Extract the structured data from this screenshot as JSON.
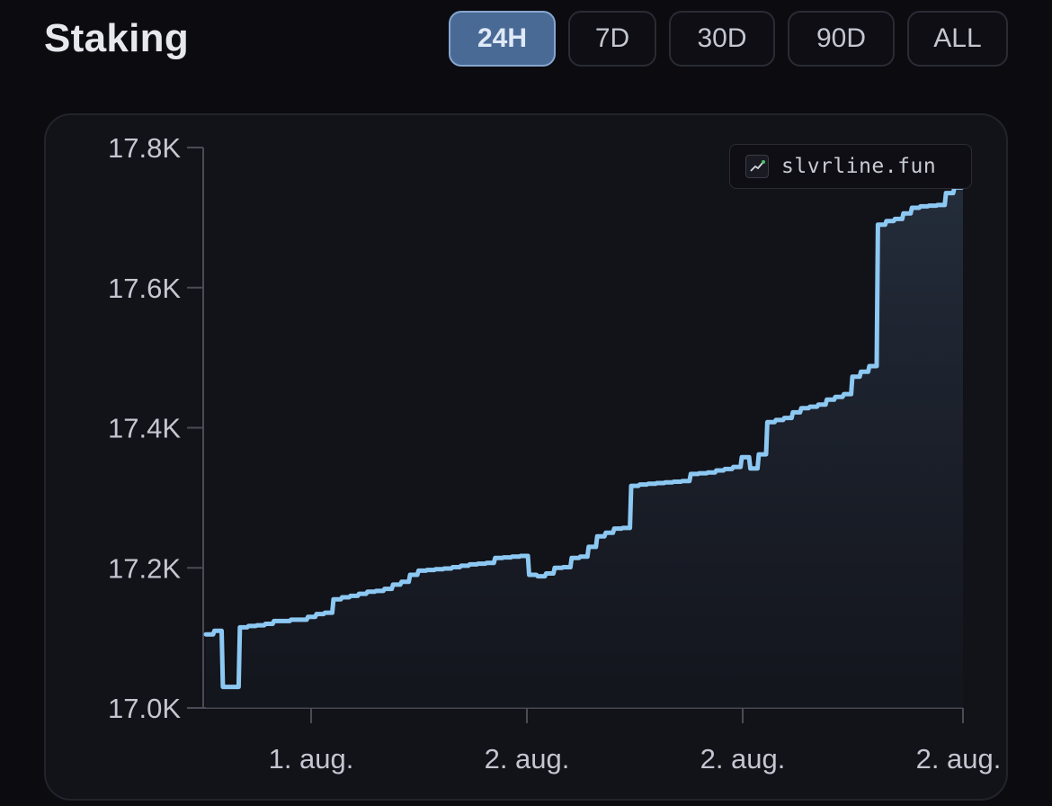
{
  "header": {
    "title": "Staking",
    "ranges": [
      {
        "label": "24H",
        "active": true
      },
      {
        "label": "7D",
        "active": false
      },
      {
        "label": "30D",
        "active": false
      },
      {
        "label": "90D",
        "active": false
      },
      {
        "label": "ALL",
        "active": false
      }
    ]
  },
  "watermark": {
    "text": "slvrline.fun",
    "icon": "trend-chart-icon"
  },
  "colors": {
    "background": "#0b0b10",
    "card": "#121219",
    "line": "#8cc8f2",
    "active_button": "#4a6a96",
    "axis_text": "#c4c6d0"
  },
  "chart_data": {
    "type": "area",
    "title": "",
    "xlabel": "",
    "ylabel": "",
    "ylim": [
      17000,
      17800
    ],
    "yticks": [
      17000,
      17200,
      17400,
      17600,
      17800
    ],
    "ytick_labels": [
      "17.0K",
      "17.2K",
      "17.4K",
      "17.6K",
      "17.8K"
    ],
    "xtick_labels": [
      "1. aug.",
      "2. aug.",
      "2. aug.",
      "2. aug."
    ],
    "grid": false,
    "series": [
      {
        "values": [
          17105,
          17110,
          17030,
          17030,
          17115,
          17117,
          17118,
          17120,
          17124,
          17124,
          17126,
          17126,
          17130,
          17134,
          17136,
          17155,
          17158,
          17160,
          17163,
          17166,
          17167,
          17170,
          17176,
          17180,
          17190,
          17196,
          17197,
          17198,
          17199,
          17201,
          17203,
          17205,
          17206,
          17207,
          17214,
          17215,
          17216,
          17217,
          17190,
          17188,
          17192,
          17200,
          17201,
          17214,
          17216,
          17230,
          17245,
          17250,
          17256,
          17257,
          17317,
          17319,
          17320,
          17321,
          17322,
          17323,
          17324,
          17334,
          17335,
          17336,
          17339,
          17341,
          17344,
          17358,
          17342,
          17362,
          17408,
          17411,
          17414,
          17422,
          17428,
          17430,
          17433,
          17440,
          17444,
          17448,
          17473,
          17480,
          17488,
          17690,
          17695,
          17698,
          17706,
          17714,
          17716,
          17717,
          17718,
          17735,
          17743,
          17750
        ]
      }
    ]
  }
}
